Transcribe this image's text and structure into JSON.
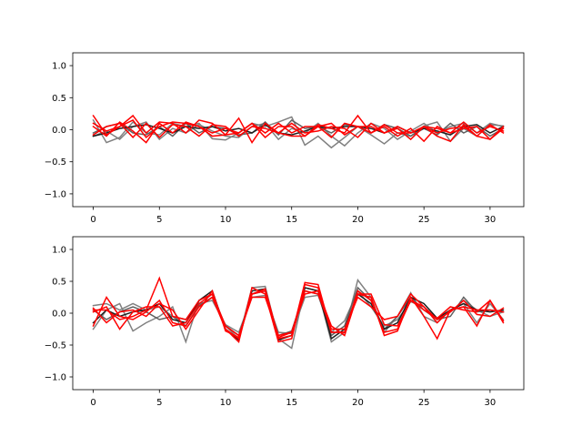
{
  "chart_data": [
    {
      "type": "line",
      "title": "",
      "xlabel": "",
      "ylabel": "",
      "xlim": [
        -1.55,
        32.55
      ],
      "ylim": [
        -1.2,
        1.2
      ],
      "xticks": [
        0,
        5,
        10,
        15,
        20,
        25,
        30
      ],
      "xtick_labels": [
        "0",
        "5",
        "10",
        "15",
        "20",
        "25",
        "30"
      ],
      "yticks": [
        -1.0,
        -0.5,
        0.0,
        0.5,
        1.0
      ],
      "ytick_labels": [
        "−1.0",
        "−0.5",
        "0.0",
        "0.5",
        "1.0"
      ],
      "grid": false,
      "legend": "none",
      "x": [
        0,
        1,
        2,
        3,
        4,
        5,
        6,
        7,
        8,
        9,
        10,
        11,
        12,
        13,
        14,
        15,
        16,
        17,
        18,
        19,
        20,
        21,
        22,
        23,
        24,
        25,
        26,
        27,
        28,
        29,
        30,
        31
      ],
      "series": [
        {
          "color": "#808080",
          "values": [
            0.15,
            -0.2,
            -0.12,
            0.12,
            -0.05,
            -0.08,
            0.1,
            0.05,
            0.1,
            -0.14,
            -0.16,
            -0.05,
            0.1,
            0.05,
            0.12,
            0.2,
            -0.24,
            -0.1,
            -0.28,
            -0.12,
            0.05,
            -0.08,
            -0.22,
            -0.05,
            -0.1,
            0.06,
            0.12,
            -0.18,
            0.02,
            -0.1,
            0.08,
            0.06
          ]
        },
        {
          "color": "#808080",
          "values": [
            -0.1,
            -0.02,
            -0.15,
            0.05,
            0.12,
            -0.15,
            0.02,
            -0.05,
            0.08,
            -0.02,
            -0.1,
            -0.12,
            0.05,
            0.1,
            -0.15,
            0.02,
            -0.05,
            0.1,
            -0.1,
            -0.25,
            -0.05,
            0.1,
            0.02,
            -0.15,
            -0.02,
            0.1,
            -0.05,
            0.05,
            0.1,
            -0.05,
            0.1,
            0.05
          ]
        },
        {
          "color": "#606060",
          "values": [
            -0.05,
            0.05,
            0.1,
            -0.05,
            -0.08,
            0.05,
            -0.1,
            0.1,
            -0.05,
            0.05,
            0.02,
            -0.08,
            -0.05,
            0.12,
            -0.08,
            0.15,
            0.02,
            0.05,
            -0.05,
            0.08,
            0.05,
            -0.05,
            0.08,
            0.02,
            -0.1,
            0.02,
            -0.08,
            0.1,
            -0.05,
            0.05,
            -0.1,
            0.02
          ]
        },
        {
          "color": "#202020",
          "values": [
            -0.1,
            -0.05,
            0.02,
            0.05,
            0.08,
            0.02,
            -0.05,
            0.05,
            0.02,
            0.05,
            -0.02,
            0.02,
            -0.05,
            0.08,
            -0.05,
            -0.08,
            -0.02,
            0.05,
            0.02,
            0.05,
            0.05,
            0.02,
            -0.05,
            0.05,
            -0.05,
            0.02,
            -0.02,
            -0.08,
            0.05,
            0.08,
            -0.05,
            0.05
          ]
        },
        {
          "color": "#ff0000",
          "values": [
            0.22,
            -0.08,
            0.05,
            0.22,
            -0.05,
            0.12,
            0.1,
            -0.05,
            0.15,
            0.1,
            -0.08,
            0.18,
            -0.2,
            0.1,
            -0.05,
            -0.1,
            -0.1,
            0.05,
            0.1,
            -0.08,
            0.05,
            0.05,
            -0.05,
            0.02,
            -0.15,
            0.05,
            0.02,
            -0.05,
            0.12,
            -0.05,
            0.05,
            -0.02
          ]
        },
        {
          "color": "#ff0000",
          "values": [
            0.05,
            -0.1,
            0.12,
            -0.02,
            -0.2,
            0.1,
            -0.05,
            0.12,
            0.05,
            -0.05,
            0.02,
            -0.05,
            0.1,
            -0.12,
            0.05,
            0.05,
            -0.1,
            0.08,
            0.02,
            -0.05,
            0.22,
            -0.05,
            0.05,
            -0.1,
            0.02,
            -0.18,
            0.05,
            -0.05,
            0.02,
            0.05,
            -0.15,
            0.05
          ]
        },
        {
          "color": "#ff0000",
          "values": [
            -0.08,
            0.05,
            0.1,
            -0.12,
            0.1,
            -0.12,
            0.08,
            0.05,
            -0.1,
            0.08,
            0.05,
            -0.1,
            0.05,
            0.02,
            -0.05,
            0.1,
            -0.05,
            -0.02,
            0.05,
            0.02,
            -0.12,
            0.1,
            -0.05,
            0.05,
            -0.05,
            0.05,
            -0.1,
            -0.18,
            0.08,
            -0.1,
            0.08,
            -0.05
          ]
        },
        {
          "color": "#ff0000",
          "values": [
            0.1,
            -0.02,
            0.05,
            0.15,
            -0.12,
            0.05,
            0.12,
            0.1,
            0.05,
            -0.1,
            -0.08,
            -0.05,
            0.1,
            -0.05,
            0.1,
            -0.05,
            0.05,
            0.05,
            -0.12,
            0.1,
            0.05,
            -0.05,
            0.08,
            -0.05,
            -0.05,
            0.05,
            -0.05,
            0.02,
            0.05,
            -0.1,
            -0.15,
            0.02
          ]
        }
      ]
    },
    {
      "type": "line",
      "title": "",
      "xlabel": "",
      "ylabel": "",
      "xlim": [
        -1.55,
        32.55
      ],
      "ylim": [
        -1.2,
        1.2
      ],
      "xticks": [
        0,
        5,
        10,
        15,
        20,
        25,
        30
      ],
      "xtick_labels": [
        "0",
        "5",
        "10",
        "15",
        "20",
        "25",
        "30"
      ],
      "yticks": [
        -1.0,
        -0.5,
        0.0,
        0.5,
        1.0
      ],
      "ytick_labels": [
        "−1.0",
        "−0.5",
        "0.0",
        "0.5",
        "1.0"
      ],
      "grid": false,
      "legend": "none",
      "x": [
        0,
        1,
        2,
        3,
        4,
        5,
        6,
        7,
        8,
        9,
        10,
        11,
        12,
        13,
        14,
        15,
        16,
        17,
        18,
        19,
        20,
        21,
        22,
        23,
        24,
        25,
        26,
        27,
        28,
        29,
        30,
        31
      ],
      "series": [
        {
          "color": "#808080",
          "values": [
            -0.25,
            0.05,
            0.15,
            -0.28,
            -0.15,
            -0.05,
            0.1,
            -0.45,
            0.2,
            0.3,
            -0.2,
            -0.4,
            0.4,
            0.42,
            -0.4,
            -0.55,
            0.4,
            0.35,
            -0.45,
            -0.3,
            0.52,
            0.25,
            -0.3,
            -0.05,
            0.32,
            -0.05,
            -0.15,
            0.05,
            0.15,
            -0.15,
            0.15,
            -0.1
          ]
        },
        {
          "color": "#808080",
          "values": [
            0.12,
            0.15,
            0.05,
            0.15,
            0.05,
            0.1,
            -0.05,
            -0.1,
            0.15,
            0.2,
            -0.18,
            -0.3,
            0.25,
            0.28,
            -0.3,
            -0.32,
            0.25,
            0.28,
            -0.3,
            -0.12,
            0.35,
            0.1,
            -0.2,
            -0.1,
            0.18,
            0.1,
            -0.1,
            0.02,
            0.2,
            0.05,
            -0.05,
            0.02
          ]
        },
        {
          "color": "#606060",
          "values": [
            0.05,
            -0.1,
            0.02,
            0.1,
            0.02,
            -0.1,
            -0.05,
            -0.2,
            0.12,
            0.25,
            -0.2,
            -0.35,
            0.3,
            0.35,
            -0.35,
            -0.28,
            0.35,
            0.3,
            -0.35,
            -0.2,
            0.4,
            0.2,
            -0.25,
            -0.05,
            0.25,
            0.05,
            -0.1,
            -0.05,
            0.25,
            0.02,
            0.05,
            0.02
          ]
        },
        {
          "color": "#202020",
          "values": [
            -0.15,
            0.05,
            -0.05,
            0.02,
            0.05,
            0.15,
            -0.1,
            -0.15,
            0.2,
            0.35,
            -0.25,
            -0.42,
            0.35,
            0.38,
            -0.42,
            -0.35,
            0.4,
            0.35,
            -0.4,
            -0.25,
            0.3,
            0.15,
            -0.25,
            -0.15,
            0.25,
            0.15,
            -0.08,
            0.05,
            0.15,
            0.05,
            0.02,
            0.05
          ]
        },
        {
          "color": "#ff0000",
          "values": [
            0.05,
            0.05,
            -0.1,
            -0.05,
            0.05,
            0.55,
            -0.05,
            -0.1,
            0.2,
            0.3,
            -0.25,
            -0.4,
            0.3,
            0.35,
            -0.4,
            -0.35,
            0.48,
            0.45,
            -0.3,
            -0.3,
            0.3,
            0.25,
            -0.35,
            -0.28,
            0.25,
            -0.05,
            -0.4,
            0.05,
            0.1,
            -0.2,
            0.2,
            -0.15
          ]
        },
        {
          "color": "#ff0000",
          "values": [
            -0.2,
            0.25,
            -0.05,
            -0.1,
            0.02,
            0.2,
            -0.15,
            -0.2,
            0.1,
            0.25,
            -0.25,
            -0.45,
            0.4,
            0.3,
            -0.45,
            -0.4,
            0.45,
            0.4,
            -0.3,
            -0.3,
            0.35,
            0.2,
            -0.3,
            -0.25,
            0.2,
            0.1,
            -0.1,
            0.02,
            0.2,
            -0.02,
            -0.05,
            0.08
          ]
        },
        {
          "color": "#ff0000",
          "values": [
            0.02,
            0.1,
            -0.25,
            0.02,
            0.1,
            0.1,
            -0.2,
            -0.15,
            0.15,
            0.3,
            -0.2,
            -0.35,
            0.25,
            0.25,
            -0.35,
            -0.3,
            0.35,
            0.3,
            -0.25,
            -0.25,
            0.25,
            0.1,
            -0.1,
            -0.05,
            0.3,
            0.1,
            -0.15,
            0.05,
            0.1,
            0.05,
            0.05,
            0.02
          ]
        },
        {
          "color": "#ff0000",
          "values": [
            0.08,
            -0.15,
            0.02,
            0.05,
            -0.05,
            0.15,
            0.05,
            -0.25,
            0.05,
            0.35,
            -0.28,
            -0.38,
            0.3,
            0.38,
            -0.38,
            -0.3,
            0.3,
            0.35,
            -0.2,
            -0.35,
            0.3,
            0.3,
            -0.18,
            -0.2,
            0.2,
            0.05,
            -0.08,
            0.1,
            0.05,
            0.02,
            0.2,
            -0.12
          ]
        }
      ]
    }
  ]
}
